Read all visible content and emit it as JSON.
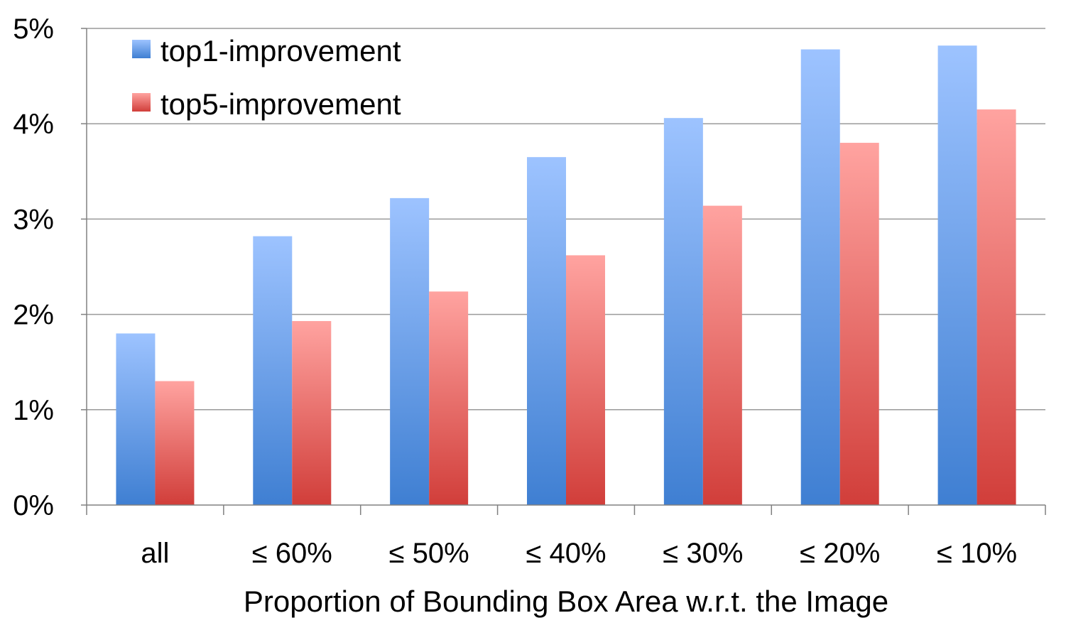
{
  "chart_data": {
    "type": "bar",
    "title": "",
    "xlabel": "Proportion of Bounding Box Area w.r.t. the Image",
    "ylabel": "",
    "categories": [
      "all",
      "≤ 60%",
      "≤ 50%",
      "≤ 40%",
      "≤ 30%",
      "≤ 20%",
      "≤ 10%"
    ],
    "series": [
      {
        "name": "top1-improvement",
        "values": [
          1.8,
          2.82,
          3.22,
          3.65,
          4.06,
          4.78,
          4.82
        ]
      },
      {
        "name": "top5-improvement",
        "values": [
          1.3,
          1.93,
          2.24,
          2.62,
          3.14,
          3.8,
          4.15
        ]
      }
    ],
    "ylim": [
      0,
      5
    ],
    "yticks": [
      "0%",
      "1%",
      "2%",
      "3%",
      "4%",
      "5%"
    ],
    "grid": true,
    "legend_position": "top-left",
    "colors": {
      "top1_light": "#9DC3FF",
      "top1_dark": "#3F7FD2",
      "top5_light": "#FFA3A0",
      "top5_dark": "#D13E3A",
      "grid": "#9a9a9a",
      "axis": "#808080"
    }
  }
}
